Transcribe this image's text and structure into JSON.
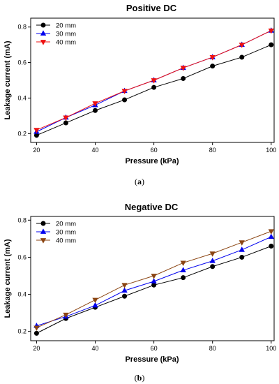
{
  "chart_data": [
    {
      "type": "line",
      "title": "Positive DC",
      "xlabel": "Pressure (kPa)",
      "ylabel": "Leakage current (mA)",
      "xlim": [
        18,
        101
      ],
      "ylim": [
        0.15,
        0.85
      ],
      "xticks": [
        20,
        40,
        60,
        80,
        100
      ],
      "yticks": [
        0.2,
        0.4,
        0.6,
        0.8
      ],
      "xtick_labels": [
        "20",
        "40",
        "60",
        "80",
        "100"
      ],
      "ytick_labels": [
        "0.2",
        "0.4",
        "0.6",
        "0.8"
      ],
      "x": [
        20,
        30,
        40,
        50,
        60,
        70,
        80,
        90,
        100
      ],
      "legend_position": "top-left",
      "grid": false,
      "caption_open": "(",
      "caption_letter": "a",
      "caption_close": ")",
      "series": [
        {
          "name": "20 mm",
          "color": "#000000",
          "marker": "circle",
          "values": [
            0.19,
            0.26,
            0.33,
            0.39,
            0.46,
            0.51,
            0.58,
            0.63,
            0.7
          ]
        },
        {
          "name": "30 mm",
          "color": "#0000ee",
          "marker": "triangle-up",
          "values": [
            0.21,
            0.29,
            0.36,
            0.44,
            0.5,
            0.57,
            0.63,
            0.7,
            0.78
          ]
        },
        {
          "name": "40 mm",
          "color": "#ee1111",
          "marker": "triangle-down",
          "values": [
            0.22,
            0.29,
            0.37,
            0.44,
            0.5,
            0.57,
            0.63,
            0.7,
            0.78
          ]
        }
      ]
    },
    {
      "type": "line",
      "title": "Negative DC",
      "xlabel": "Pressure (kPa)",
      "ylabel": "Leakage current (mA)",
      "xlim": [
        18,
        101
      ],
      "ylim": [
        0.15,
        0.82
      ],
      "xticks": [
        20,
        40,
        60,
        80,
        100
      ],
      "yticks": [
        0.2,
        0.4,
        0.6,
        0.8
      ],
      "xtick_labels": [
        "20",
        "40",
        "60",
        "80",
        "100"
      ],
      "ytick_labels": [
        "0.2",
        "0.4",
        "0.6",
        "0.8"
      ],
      "x": [
        20,
        30,
        40,
        50,
        60,
        70,
        80,
        90,
        100
      ],
      "legend_position": "top-left",
      "grid": false,
      "caption_open": "(",
      "caption_letter": "b",
      "caption_close": ")",
      "series": [
        {
          "name": "20 mm",
          "color": "#000000",
          "marker": "circle",
          "values": [
            0.19,
            0.27,
            0.33,
            0.39,
            0.45,
            0.49,
            0.55,
            0.6,
            0.66
          ]
        },
        {
          "name": "30 mm",
          "color": "#0000ee",
          "marker": "triangle-up",
          "values": [
            0.23,
            0.28,
            0.34,
            0.42,
            0.47,
            0.53,
            0.58,
            0.64,
            0.71
          ]
        },
        {
          "name": "40 mm",
          "color": "#8b4513",
          "marker": "triangle-down",
          "values": [
            0.22,
            0.29,
            0.37,
            0.45,
            0.5,
            0.57,
            0.62,
            0.68,
            0.74
          ]
        }
      ]
    }
  ]
}
